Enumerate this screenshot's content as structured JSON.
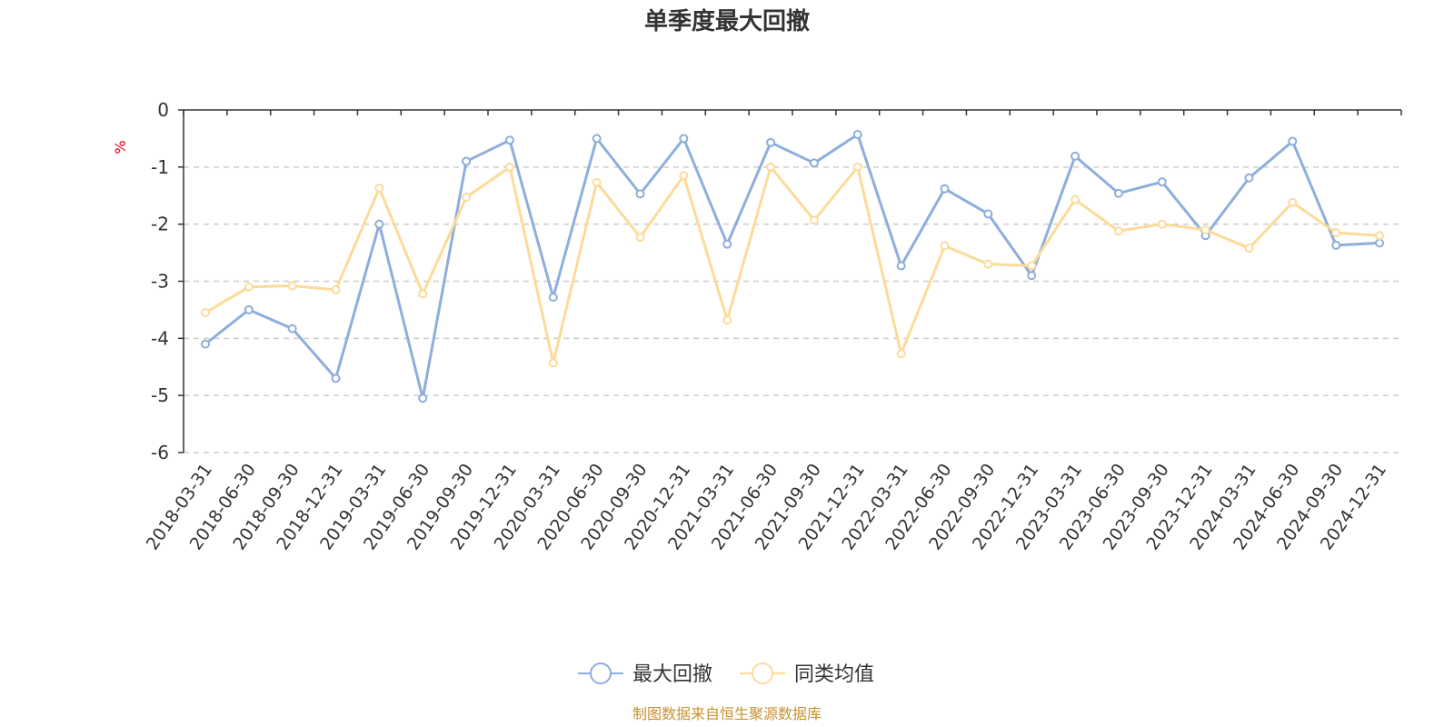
{
  "chart_data": {
    "type": "line",
    "title": "单季度最大回撤",
    "ylabel": "%",
    "ylim": [
      -6,
      0
    ],
    "yticks": [
      0,
      -1,
      -2,
      -3,
      -4,
      -5,
      -6
    ],
    "categories": [
      "2018-03-31",
      "2018-06-30",
      "2018-09-30",
      "2018-12-31",
      "2019-03-31",
      "2019-06-30",
      "2019-09-30",
      "2019-12-31",
      "2020-03-31",
      "2020-06-30",
      "2020-09-30",
      "2020-12-31",
      "2021-03-31",
      "2021-06-30",
      "2021-09-30",
      "2021-12-31",
      "2022-03-31",
      "2022-06-30",
      "2022-09-30",
      "2022-12-31",
      "2023-03-31",
      "2023-06-30",
      "2023-09-30",
      "2023-12-31",
      "2024-03-31",
      "2024-06-30",
      "2024-09-30",
      "2024-12-31"
    ],
    "series": [
      {
        "name": "最大回撤",
        "color": "#8eaedb",
        "values": [
          -4.1,
          -3.5,
          -3.83,
          -4.7,
          -2.0,
          -5.05,
          -0.9,
          -0.53,
          -3.28,
          -0.5,
          -1.47,
          -0.5,
          -2.35,
          -0.57,
          -0.93,
          -0.43,
          -2.73,
          -1.38,
          -1.82,
          -2.9,
          -0.81,
          -1.46,
          -1.26,
          -2.2,
          -1.19,
          -0.55,
          -2.37,
          -2.33
        ]
      },
      {
        "name": "同类均值",
        "color": "#fcdb9a",
        "values": [
          -3.55,
          -3.1,
          -3.08,
          -3.15,
          -1.37,
          -3.22,
          -1.53,
          -1.0,
          -4.43,
          -1.27,
          -2.23,
          -1.15,
          -3.68,
          -1.0,
          -1.93,
          -1.0,
          -4.27,
          -2.38,
          -2.7,
          -2.73,
          -1.57,
          -2.12,
          -2.0,
          -2.1,
          -2.42,
          -1.62,
          -2.15,
          -2.2
        ]
      }
    ],
    "legend_position": "bottom-center",
    "grid": "horizontal-dashed"
  },
  "footer": {
    "source": "制图数据来自恒生聚源数据库"
  }
}
